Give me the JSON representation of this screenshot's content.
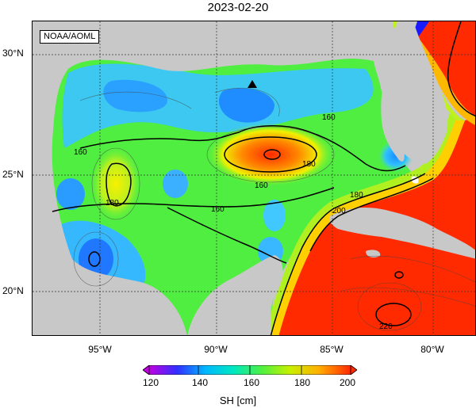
{
  "title": "2023-02-20",
  "credit": "NOAA/AOML",
  "latitude_labels": [
    "30°N",
    "25°N",
    "20°N"
  ],
  "longitude_labels": [
    "95°W",
    "90°W",
    "85°W",
    "80°W"
  ],
  "contour_labels": [
    "160",
    "160",
    "180",
    "180",
    "160",
    "160",
    "180",
    "200",
    "220"
  ],
  "colorbar": {
    "ticks": [
      "120",
      "140",
      "160",
      "180",
      "200"
    ],
    "units": "SH [cm]",
    "colors": [
      "#c000e0",
      "#3030ff",
      "#00b8ff",
      "#00e8c0",
      "#50f040",
      "#c8f000",
      "#ffb000",
      "#ff2a00"
    ]
  },
  "colors": {
    "land": "#c8c8c8",
    "loop_current": "#ff2a00",
    "gulf_interior": "#50ee40"
  }
}
